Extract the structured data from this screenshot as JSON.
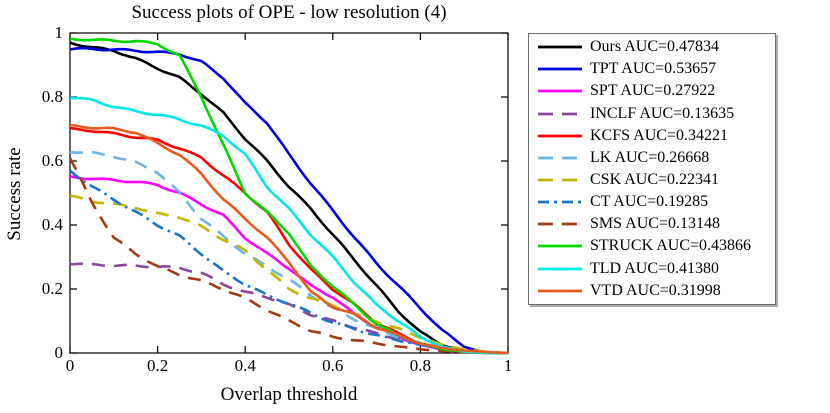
{
  "chart_data": {
    "type": "line",
    "title": "Success plots of OPE - low resolution (4)",
    "xlabel": "Overlap threshold",
    "ylabel": "Success rate",
    "xlim": [
      0,
      1
    ],
    "ylim": [
      0,
      1
    ],
    "x_ticks": [
      0,
      0.2,
      0.4,
      0.6,
      0.8,
      1
    ],
    "y_ticks": [
      0,
      0.2,
      0.4,
      0.6,
      0.8,
      1
    ],
    "grid": false,
    "legend_position": "outside-right",
    "x_step": 0.05,
    "x": [
      0,
      0.05,
      0.1,
      0.15,
      0.2,
      0.25,
      0.3,
      0.35,
      0.4,
      0.45,
      0.5,
      0.55,
      0.6,
      0.65,
      0.7,
      0.75,
      0.8,
      0.85,
      0.9,
      0.95,
      1
    ],
    "series": [
      {
        "label": "Ours",
        "auc": "0.47834",
        "color": "#000000",
        "style": "solid",
        "values": [
          0.97,
          0.955,
          0.945,
          0.92,
          0.89,
          0.86,
          0.81,
          0.75,
          0.67,
          0.6,
          0.52,
          0.45,
          0.37,
          0.29,
          0.21,
          0.13,
          0.065,
          0.025,
          0.005,
          0,
          0
        ]
      },
      {
        "label": "TPT",
        "auc": "0.53657",
        "color": "#0000e0",
        "style": "solid",
        "values": [
          0.95,
          0.95,
          0.948,
          0.945,
          0.94,
          0.935,
          0.91,
          0.86,
          0.78,
          0.72,
          0.62,
          0.53,
          0.445,
          0.36,
          0.28,
          0.21,
          0.14,
          0.07,
          0.02,
          0,
          0
        ]
      },
      {
        "label": "SPT",
        "auc": "0.27922",
        "color": "#ff00ff",
        "style": "solid",
        "values": [
          0.55,
          0.545,
          0.54,
          0.535,
          0.525,
          0.5,
          0.465,
          0.43,
          0.36,
          0.31,
          0.265,
          0.21,
          0.175,
          0.12,
          0.08,
          0.05,
          0.025,
          0.01,
          0.003,
          0,
          0
        ]
      },
      {
        "label": "INCLF",
        "auc": "0.13635",
        "color": "#8c46a0",
        "style": "dashed",
        "values": [
          0.28,
          0.276,
          0.274,
          0.272,
          0.27,
          0.266,
          0.25,
          0.215,
          0.19,
          0.175,
          0.15,
          0.12,
          0.1,
          0.08,
          0.06,
          0.045,
          0.028,
          0.014,
          0.005,
          0,
          0
        ]
      },
      {
        "label": "KCFS",
        "auc": "0.34221",
        "color": "#ff0000",
        "style": "solid",
        "values": [
          0.7,
          0.695,
          0.685,
          0.675,
          0.665,
          0.64,
          0.61,
          0.555,
          0.5,
          0.44,
          0.34,
          0.26,
          0.2,
          0.15,
          0.095,
          0.06,
          0.03,
          0.012,
          0.003,
          0,
          0
        ]
      },
      {
        "label": "LK",
        "auc": "0.26668",
        "color": "#6bb5e8",
        "style": "dashed",
        "values": [
          0.63,
          0.625,
          0.615,
          0.595,
          0.565,
          0.5,
          0.42,
          0.365,
          0.31,
          0.27,
          0.23,
          0.18,
          0.14,
          0.105,
          0.075,
          0.05,
          0.03,
          0.015,
          0.005,
          0,
          0
        ]
      },
      {
        "label": "CSK",
        "auc": "0.22341",
        "color": "#c3b400",
        "style": "dashed",
        "values": [
          0.49,
          0.475,
          0.465,
          0.455,
          0.435,
          0.425,
          0.395,
          0.355,
          0.32,
          0.26,
          0.2,
          0.17,
          0.15,
          0.12,
          0.1,
          0.075,
          0.05,
          0.025,
          0.012,
          0.004,
          0
        ]
      },
      {
        "label": "CT",
        "auc": "0.19285",
        "color": "#1874cd",
        "style": "dashdot",
        "values": [
          0.57,
          0.52,
          0.48,
          0.44,
          0.4,
          0.365,
          0.31,
          0.255,
          0.215,
          0.18,
          0.155,
          0.125,
          0.095,
          0.075,
          0.055,
          0.04,
          0.025,
          0.012,
          0.004,
          0,
          0
        ]
      },
      {
        "label": "SMS",
        "auc": "0.13148",
        "color": "#a33c14",
        "style": "dashed",
        "values": [
          0.61,
          0.47,
          0.36,
          0.31,
          0.27,
          0.245,
          0.225,
          0.2,
          0.17,
          0.135,
          0.1,
          0.07,
          0.05,
          0.04,
          0.03,
          0.02,
          0.012,
          0.006,
          0.002,
          0,
          0
        ]
      },
      {
        "label": "STRUCK",
        "auc": "0.43866",
        "color": "#00d900",
        "style": "solid",
        "values": [
          0.98,
          0.98,
          0.975,
          0.975,
          0.965,
          0.93,
          0.8,
          0.65,
          0.5,
          0.44,
          0.375,
          0.27,
          0.21,
          0.15,
          0.09,
          0.055,
          0.03,
          0.012,
          0.004,
          0,
          0
        ]
      },
      {
        "label": "TLD",
        "auc": "0.41380",
        "color": "#00e8e8",
        "style": "solid",
        "values": [
          0.8,
          0.79,
          0.77,
          0.755,
          0.745,
          0.73,
          0.71,
          0.68,
          0.62,
          0.52,
          0.45,
          0.37,
          0.3,
          0.22,
          0.15,
          0.1,
          0.05,
          0.02,
          0.005,
          0,
          0
        ]
      },
      {
        "label": "VTD",
        "auc": "0.31998",
        "color": "#e8591c",
        "style": "solid",
        "values": [
          0.71,
          0.705,
          0.7,
          0.69,
          0.655,
          0.62,
          0.56,
          0.48,
          0.42,
          0.36,
          0.285,
          0.19,
          0.145,
          0.12,
          0.08,
          0.055,
          0.03,
          0.015,
          0.008,
          0.003,
          0
        ]
      }
    ],
    "legend_auc_prefix": " AUC="
  },
  "layout_colors": {
    "axis": "#000000",
    "legend_border": "#6f6f6f",
    "legend_shadow": "#ababab",
    "background": "#ffffff"
  }
}
